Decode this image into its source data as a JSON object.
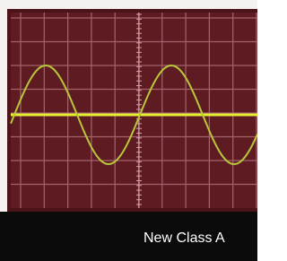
{
  "caption": "New Class A"
}
